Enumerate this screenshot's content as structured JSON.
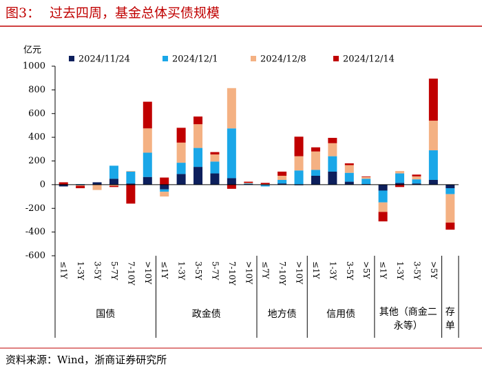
{
  "chart_data": {
    "type": "bar",
    "stacked": true,
    "figure_label": "图3：",
    "title": "过去四周，基金总体买债规模",
    "y_unit": "亿元",
    "source": "资料来源：Wind，浙商证券研究所",
    "ylim": [
      -600,
      1000
    ],
    "yticks": [
      1000,
      800,
      600,
      400,
      200,
      0,
      -200,
      -400,
      -600
    ],
    "groups": [
      {
        "name": "国债",
        "categories": [
          "≤1Y",
          "1-3Y",
          "3-5Y",
          "5-7Y",
          "7-10Y",
          ">10Y"
        ]
      },
      {
        "name": "政金债",
        "categories": [
          "≤1Y",
          "1-3Y",
          "3-5Y",
          "5-7Y",
          "7-10Y",
          ">10Y"
        ]
      },
      {
        "name": "地方债",
        "categories": [
          "≤7Y",
          "7-10Y",
          ">10Y"
        ]
      },
      {
        "name": "信用债",
        "categories": [
          "≤1Y",
          "1-3Y",
          "3-5Y",
          ">5Y"
        ]
      },
      {
        "name": "其他（商金二永等）",
        "categories": [
          "≤1Y",
          "1-3Y",
          "3-5Y",
          ">5Y"
        ]
      },
      {
        "name": "存单",
        "categories": [
          null
        ]
      }
    ],
    "series": [
      {
        "name": "2024/11/24",
        "color": "#0d1f5c",
        "values": [
          -15,
          -5,
          20,
          50,
          10,
          65,
          -40,
          90,
          150,
          95,
          55,
          5,
          -5,
          10,
          -5,
          75,
          110,
          25,
          5,
          -50,
          15,
          10,
          40,
          -30
        ]
      },
      {
        "name": "2024/12/1",
        "color": "#1aa7e8",
        "values": [
          0,
          5,
          0,
          110,
          100,
          205,
          -20,
          95,
          160,
          100,
          420,
          5,
          -10,
          30,
          120,
          50,
          130,
          75,
          45,
          -100,
          80,
          35,
          250,
          -50
        ]
      },
      {
        "name": "2024/12/8",
        "color": "#f4b183",
        "values": [
          0,
          -5,
          -45,
          -10,
          5,
          205,
          -40,
          170,
          200,
          60,
          340,
          5,
          5,
          35,
          120,
          155,
          110,
          65,
          15,
          -80,
          20,
          25,
          250,
          -240
        ]
      },
      {
        "name": "2024/12/14",
        "color": "#c00000",
        "values": [
          20,
          -20,
          0,
          -10,
          -160,
          225,
          60,
          125,
          65,
          20,
          -35,
          10,
          10,
          35,
          165,
          35,
          45,
          15,
          5,
          -80,
          -20,
          15,
          355,
          -60
        ]
      }
    ]
  }
}
